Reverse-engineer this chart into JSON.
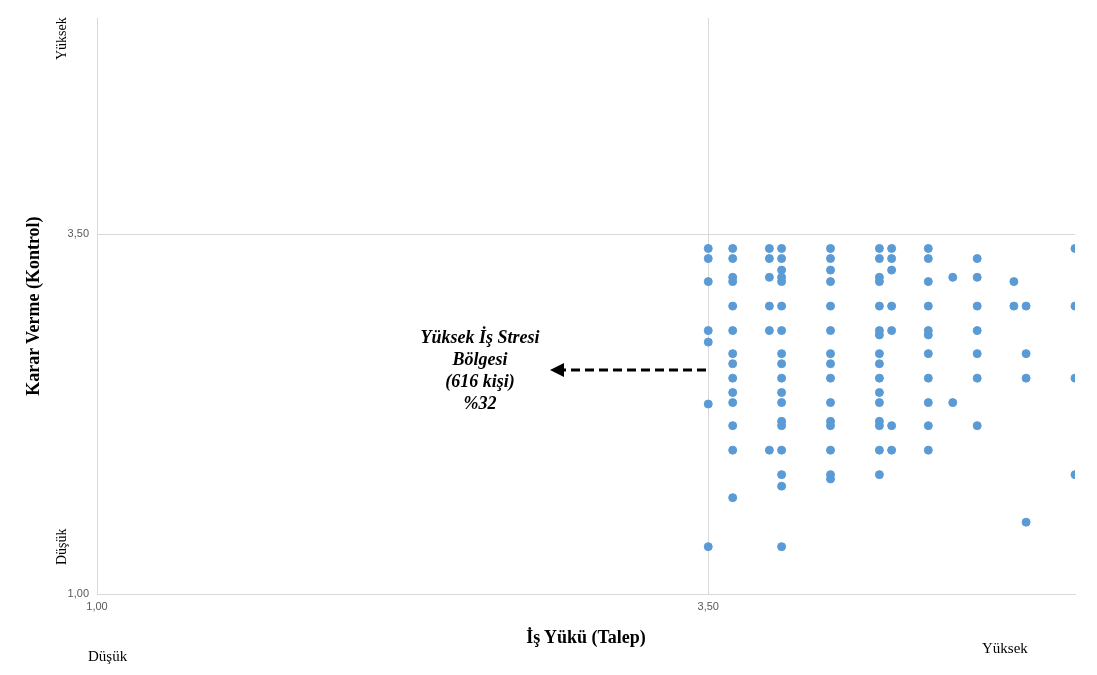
{
  "chart_data": {
    "type": "scatter",
    "xlabel": "İş Yükü (Talep)",
    "ylabel": "Karar Verme (Kontrol)",
    "xlim": [
      1,
      5
    ],
    "ylim": [
      1,
      5
    ],
    "xticks": [
      {
        "value": 1,
        "label": "1,00"
      },
      {
        "value": 3.5,
        "label": "3,50"
      }
    ],
    "yticks": [
      {
        "value": 1,
        "label": "1,00"
      },
      {
        "value": 3.5,
        "label": "3,50"
      }
    ],
    "grid": true,
    "legend": false,
    "marker": "circle",
    "annotations": [
      "Düşük",
      "Yüksek",
      "Düşük",
      "Yüksek",
      "Yüksek İş Stresi\nBölgesi\n(616 kişi)\n%32"
    ],
    "series": [
      {
        "color": "#5b9bd5",
        "x": [
          3.5,
          3.5,
          3.5,
          3.5,
          3.5,
          3.5,
          3.5,
          3.6,
          3.6,
          3.6,
          3.6,
          3.6,
          3.6,
          3.6,
          3.6,
          3.6,
          3.6,
          3.6,
          3.6,
          3.6,
          3.6,
          3.75,
          3.75,
          3.75,
          3.75,
          3.75,
          3.75,
          3.8,
          3.8,
          3.8,
          3.8,
          3.8,
          3.8,
          3.8,
          3.8,
          3.8,
          3.8,
          3.8,
          3.8,
          3.8,
          3.8,
          3.8,
          3.8,
          3.8,
          3.8,
          4.0,
          4.0,
          4.0,
          4.0,
          4.0,
          4.0,
          4.0,
          4.0,
          4.0,
          4.0,
          4.0,
          4.0,
          4.0,
          4.0,
          4.0,
          4.2,
          4.2,
          4.2,
          4.2,
          4.2,
          4.2,
          4.2,
          4.2,
          4.2,
          4.2,
          4.2,
          4.2,
          4.2,
          4.2,
          4.2,
          4.2,
          4.25,
          4.25,
          4.25,
          4.25,
          4.25,
          4.25,
          4.25,
          4.4,
          4.4,
          4.4,
          4.4,
          4.4,
          4.4,
          4.4,
          4.4,
          4.4,
          4.4,
          4.4,
          4.5,
          4.5,
          4.6,
          4.6,
          4.6,
          4.6,
          4.6,
          4.6,
          4.6,
          4.75,
          4.75,
          4.8,
          4.8,
          4.8,
          4.8,
          5.0,
          5.0,
          5.0,
          5.0
        ],
        "values": [
          3.4,
          3.33,
          3.17,
          2.83,
          2.75,
          2.32,
          1.33,
          3.4,
          3.33,
          3.2,
          3.17,
          3.0,
          2.83,
          2.67,
          2.6,
          2.5,
          2.4,
          2.33,
          2.17,
          2.0,
          1.67,
          3.4,
          3.33,
          3.2,
          3.0,
          2.83,
          2.0,
          3.4,
          3.33,
          3.25,
          3.2,
          3.17,
          3.0,
          2.83,
          2.67,
          2.6,
          2.5,
          2.4,
          2.33,
          2.2,
          2.17,
          2.0,
          1.83,
          1.75,
          1.33,
          3.4,
          3.33,
          3.25,
          3.17,
          3.0,
          2.83,
          2.67,
          2.6,
          2.5,
          2.33,
          2.2,
          2.17,
          2.0,
          1.83,
          1.8,
          3.4,
          3.33,
          3.2,
          3.17,
          3.0,
          2.83,
          2.8,
          2.67,
          2.6,
          2.5,
          2.4,
          2.33,
          2.2,
          2.17,
          2.0,
          1.83,
          3.4,
          3.33,
          3.25,
          3.0,
          2.83,
          2.17,
          2.0,
          3.4,
          3.33,
          3.17,
          3.0,
          2.83,
          2.8,
          2.67,
          2.5,
          2.33,
          2.17,
          2.0,
          3.2,
          2.33,
          3.33,
          3.2,
          3.0,
          2.83,
          2.67,
          2.5,
          2.17,
          3.17,
          3.0,
          3.0,
          2.67,
          2.5,
          1.5,
          3.4,
          3.0,
          2.5,
          1.83
        ]
      }
    ]
  }
}
